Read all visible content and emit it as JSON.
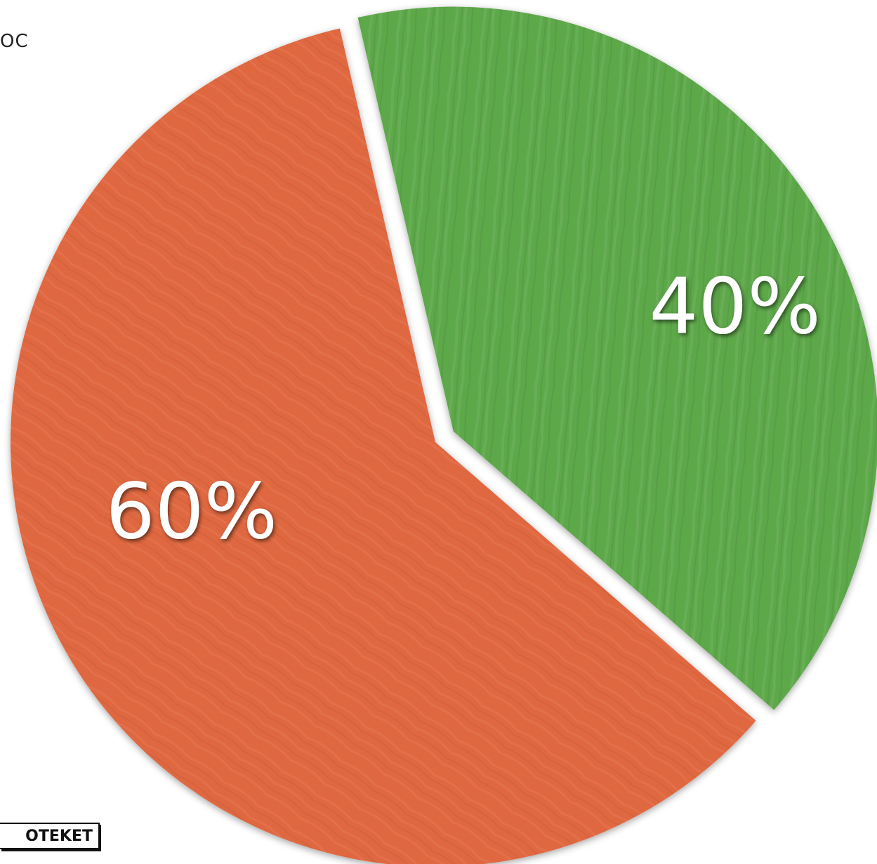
{
  "header": {
    "corner_text": "OC"
  },
  "watermark": {
    "text": "OTEKET"
  },
  "chart_data": {
    "type": "pie",
    "title": "",
    "slices": [
      {
        "label": "40%",
        "value": 40,
        "color": "#5da848",
        "exploded": true
      },
      {
        "label": "60%",
        "value": 60,
        "color": "#e06840",
        "exploded": false
      }
    ],
    "legend": "none"
  }
}
